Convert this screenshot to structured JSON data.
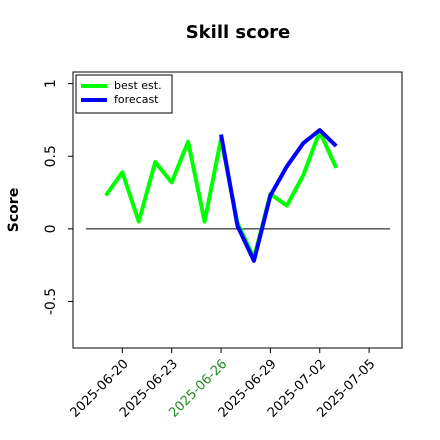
{
  "chart_data": {
    "type": "line",
    "title": "Skill score",
    "ylabel": "Score",
    "x": [
      "2025-06-19",
      "2025-06-20",
      "2025-06-21",
      "2025-06-22",
      "2025-06-23",
      "2025-06-24",
      "2025-06-25",
      "2025-06-26",
      "2025-06-27",
      "2025-06-28",
      "2025-06-29",
      "2025-06-30",
      "2025-07-01",
      "2025-07-02",
      "2025-07-03"
    ],
    "series": [
      {
        "name": "best est.",
        "color": "#00ff00",
        "values": [
          0.23,
          0.39,
          0.05,
          0.46,
          0.32,
          0.6,
          0.05,
          0.62,
          0.04,
          -0.2,
          0.24,
          0.16,
          0.37,
          0.67,
          0.42
        ]
      },
      {
        "name": "forecast",
        "color": "#0000ff",
        "values": [
          null,
          null,
          null,
          null,
          null,
          null,
          null,
          0.65,
          0.02,
          -0.22,
          0.23,
          0.43,
          0.59,
          0.68,
          0.57
        ]
      }
    ],
    "hline": 0,
    "xlim": [
      "2025-06-17",
      "2025-07-07"
    ],
    "xticks": [
      "2025-06-20",
      "2025-06-23",
      "2025-06-26",
      "2025-06-29",
      "2025-07-02",
      "2025-07-05"
    ],
    "highlighted_xtick": "2025-06-26",
    "highlight_color": "#228b22",
    "ylim": [
      -0.82,
      1.08
    ],
    "yticks": [
      -0.5,
      0.0,
      0.5,
      1.0
    ],
    "legend": "upper left"
  }
}
